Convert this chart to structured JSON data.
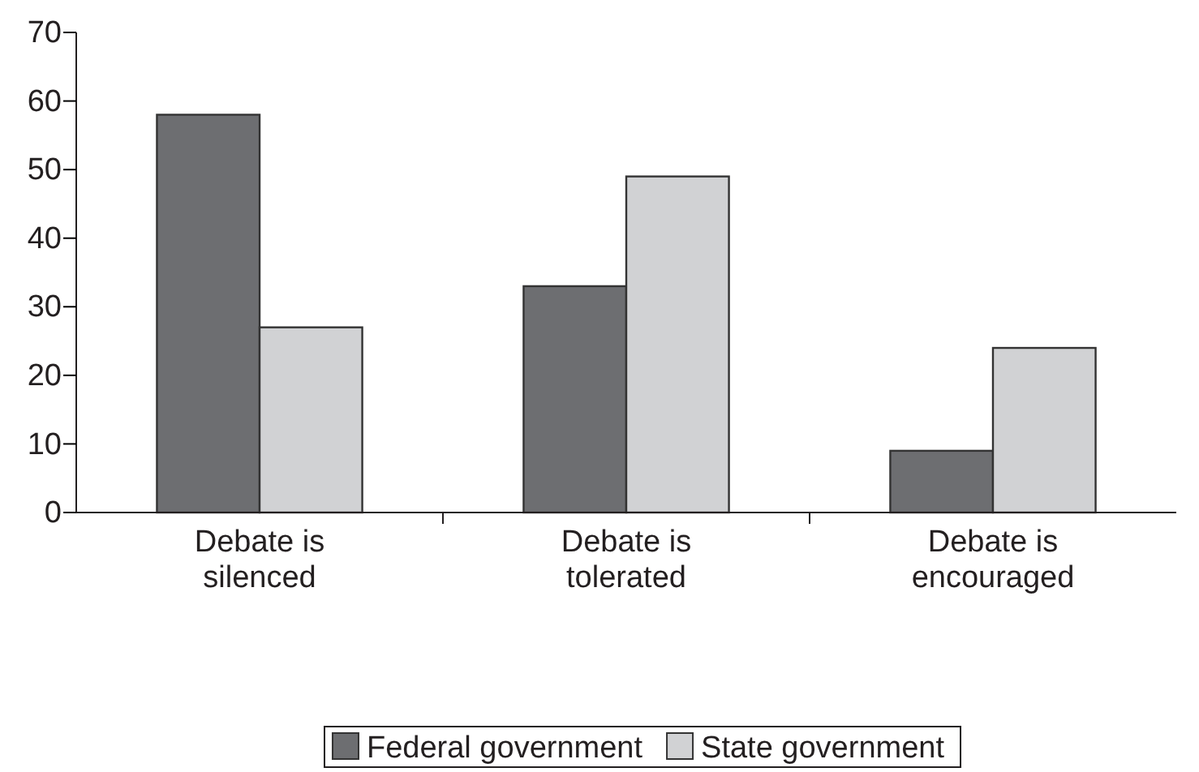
{
  "chart_data": {
    "type": "bar",
    "categories": [
      "Debate is silenced",
      "Debate is tolerated",
      "Debate is encouraged"
    ],
    "series": [
      {
        "name": "Federal government",
        "color": "#6d6e71",
        "values": [
          58,
          33,
          9
        ]
      },
      {
        "name": "State government",
        "color": "#d1d2d4",
        "values": [
          27,
          49,
          24
        ]
      }
    ],
    "ylim": [
      0,
      70
    ],
    "yticks": [
      0,
      10,
      20,
      30,
      40,
      50,
      60,
      70
    ],
    "grid": false,
    "legend": "bottom"
  }
}
